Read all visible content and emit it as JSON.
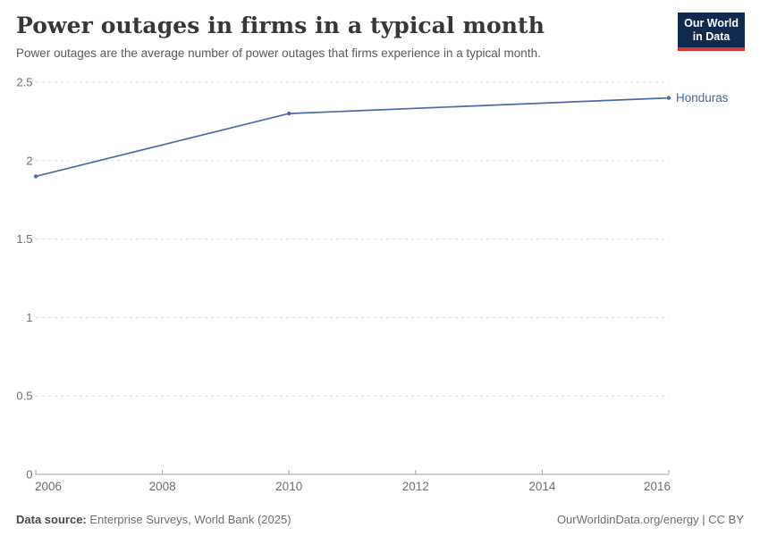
{
  "header": {
    "title": "Power outages in firms in a typical month",
    "subtitle": "Power outages are the average number of power outages that firms experience in a typical month.",
    "logo_line1": "Our World",
    "logo_line2": "in Data"
  },
  "footer": {
    "source_label": "Data source:",
    "source_text": " Enterprise Surveys, World Bank (2025)",
    "attribution": "OurWorldinData.org/energy | CC BY"
  },
  "colors": {
    "line": "#4a6ba8",
    "entity_label": "#4168aa",
    "grid": "#dcdcdc",
    "axis": "#a3a3a3",
    "tick_text": "#6e6e6e",
    "logo_bg": "#0f2a4e",
    "logo_red": "#cc3b33"
  },
  "chart_data": {
    "type": "line",
    "title": "Power outages in firms in a typical month",
    "xlabel": "",
    "ylabel": "",
    "xlim": [
      2006,
      2016
    ],
    "ylim": [
      0,
      2.5
    ],
    "x_ticks": [
      2006,
      2008,
      2010,
      2012,
      2014,
      2016
    ],
    "y_ticks": [
      0,
      0.5,
      1,
      1.5,
      2,
      2.5
    ],
    "grid": "horizontal-dashed",
    "legend_position": "end-of-line",
    "series": [
      {
        "name": "Honduras",
        "x": [
          2006,
          2010,
          2016
        ],
        "values": [
          1.9,
          2.3,
          2.4
        ]
      }
    ]
  }
}
